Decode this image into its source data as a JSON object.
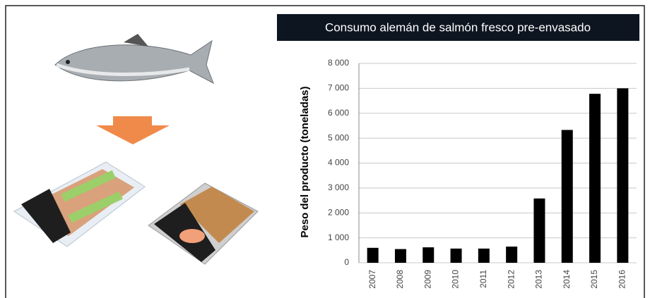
{
  "chart_data": {
    "type": "bar",
    "title": "Consumo alemán de salmón fresco pre-envasado",
    "y_label": "Peso del producto (toneladas)",
    "categories": [
      "2007",
      "2008",
      "2009",
      "2010",
      "2011",
      "2012",
      "2013",
      "2014",
      "2015",
      "2016"
    ],
    "values": [
      600,
      550,
      620,
      570,
      570,
      650,
      2580,
      5330,
      6780,
      7000
    ],
    "color": "#000000",
    "ylim": [
      0,
      8000
    ],
    "yticks": [
      0,
      {
        "value": 1000,
        "label": "1 000"
      },
      {
        "value": 2000,
        "label": "2 000"
      },
      {
        "value": 3000,
        "label": "3 000"
      },
      {
        "value": 4000,
        "label": "4 000"
      },
      {
        "value": 5000,
        "label": "5 000"
      },
      {
        "value": 6000,
        "label": "6 000"
      },
      {
        "value": 7000,
        "label": "7 000"
      },
      {
        "value": 8000,
        "label": "8 000"
      }
    ],
    "grid": true
  }
}
